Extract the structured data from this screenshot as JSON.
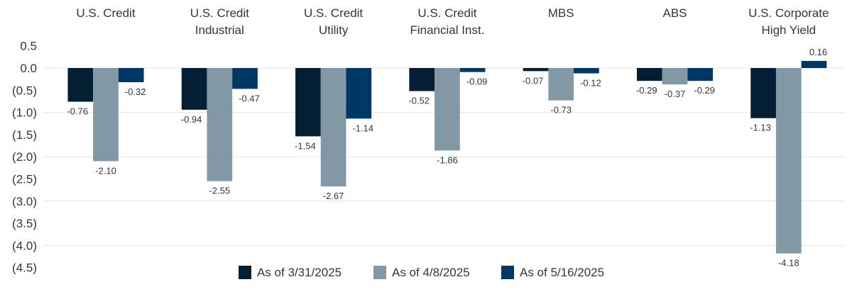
{
  "chart_data": {
    "type": "bar",
    "title": "",
    "xlabel": "",
    "ylabel": "",
    "categories": [
      [
        "U.S. Credit"
      ],
      [
        "U.S. Credit",
        "Industrial"
      ],
      [
        "U.S. Credit",
        "Utility"
      ],
      [
        "U.S. Credit",
        "Financial Inst."
      ],
      [
        "MBS"
      ],
      [
        "ABS"
      ],
      [
        "U.S. Corporate",
        "High Yield"
      ]
    ],
    "series": [
      {
        "name": "As of 3/31/2025",
        "color": "#041e33",
        "values": [
          -0.76,
          -0.94,
          -1.54,
          -0.52,
          -0.07,
          -0.29,
          -1.13
        ]
      },
      {
        "name": "As of 4/8/2025",
        "color": "#8398a5",
        "values": [
          -2.1,
          -2.55,
          -2.67,
          -1.86,
          -0.73,
          -0.37,
          -4.18
        ]
      },
      {
        "name": "As of 5/16/2025",
        "color": "#003865",
        "values": [
          -0.32,
          -0.47,
          -1.14,
          -0.09,
          -0.12,
          -0.29,
          0.16
        ]
      }
    ],
    "ylim": [
      -4.5,
      0.5
    ],
    "yticks": [
      0.5,
      0.0,
      -0.5,
      -1.0,
      -1.5,
      -2.0,
      -2.5,
      -3.0,
      -3.5,
      -4.0,
      -4.5
    ],
    "ytick_labels": [
      "0.5",
      "0.0",
      "(0.5)",
      "(1.0)",
      "(1.5)",
      "(2.0)",
      "(2.5)",
      "(3.0)",
      "(3.5)",
      "(4.0)",
      "(4.5)"
    ],
    "gridlines": [
      0,
      -1,
      -2,
      -3,
      -4
    ],
    "category_labels_position": "top",
    "legend_position": "bottom-center",
    "grid": true
  }
}
